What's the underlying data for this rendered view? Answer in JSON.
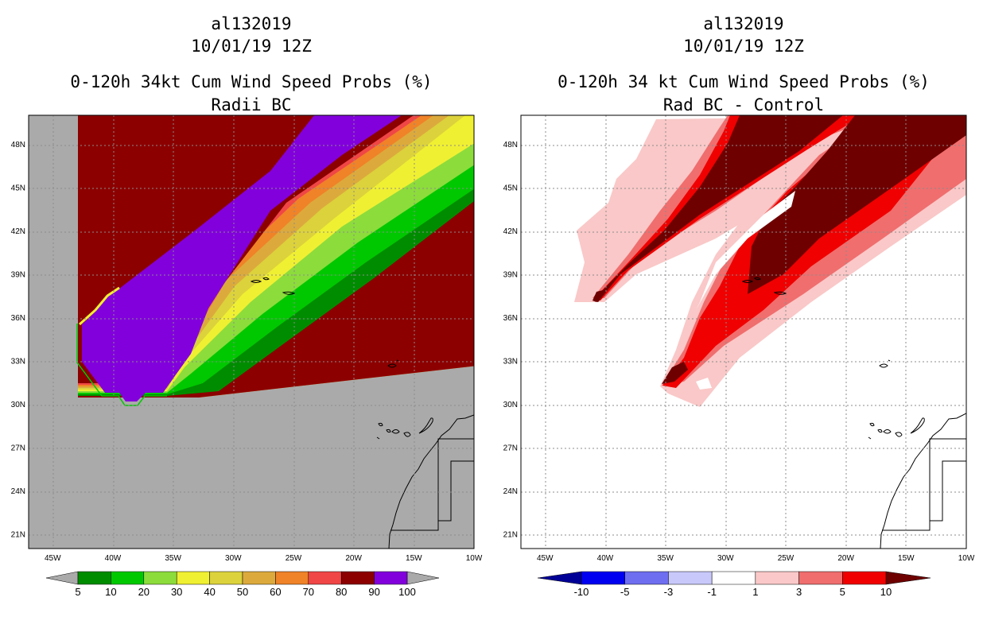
{
  "left_panel": {
    "title_lines": [
      "al132019",
      "10/01/19 12Z",
      "0-120h 34kt Cum Wind Speed Probs (%)",
      "Radii BC"
    ]
  },
  "right_panel": {
    "title_lines": [
      "al132019",
      "10/01/19 12Z",
      "0-120h 34 kt Cum Wind Speed Probs (%)",
      "Rad BC - Control"
    ]
  },
  "chart_data": [
    {
      "type": "heatmap",
      "title": "0-120h 34kt Cum Wind Speed Probs (%) - Radii BC",
      "storm": "al132019",
      "date": "10/01/19 12Z",
      "x_ticks": [
        "45W",
        "40W",
        "35W",
        "30W",
        "25W",
        "20W",
        "15W",
        "10W"
      ],
      "y_ticks": [
        "48N",
        "45N",
        "42N",
        "39N",
        "36N",
        "33N",
        "30N",
        "27N",
        "24N",
        "21N"
      ],
      "xlim": [
        -47,
        -10
      ],
      "ylim": [
        20,
        50
      ],
      "grid": true,
      "colorbar": {
        "labels": [
          "5",
          "10",
          "20",
          "30",
          "40",
          "50",
          "60",
          "70",
          "80",
          "90",
          "100"
        ],
        "colors": [
          "#008c00",
          "#00c800",
          "#8cdc3c",
          "#f0f032",
          "#dcd23c",
          "#dcaa3c",
          "#f08228",
          "#f04646",
          "#8c0000",
          "#8200dc"
        ],
        "extend_color": "#aaaaaa"
      },
      "background_color": "#aaaaaa",
      "max_band_value": 100
    },
    {
      "type": "heatmap",
      "title": "0-120h 34 kt Cum Wind Speed Probs (%) - Rad BC - Control",
      "storm": "al132019",
      "date": "10/01/19 12Z",
      "x_ticks": [
        "45W",
        "40W",
        "35W",
        "30W",
        "25W",
        "20W",
        "15W",
        "10W"
      ],
      "y_ticks": [
        "48N",
        "45N",
        "42N",
        "39N",
        "36N",
        "33N",
        "30N",
        "27N",
        "24N",
        "21N"
      ],
      "xlim": [
        -47,
        -10
      ],
      "ylim": [
        20,
        50
      ],
      "grid": true,
      "colorbar": {
        "labels": [
          "-10",
          "-5",
          "-3",
          "-1",
          "1",
          "3",
          "5",
          "10"
        ],
        "colors": [
          "#000096",
          "#0000f0",
          "#6e6ef0",
          "#c8c8fa",
          "#ffffff",
          "#fac8c8",
          "#f06e6e",
          "#f00000",
          "#6e0000"
        ]
      },
      "background_color": "#ffffff"
    }
  ]
}
